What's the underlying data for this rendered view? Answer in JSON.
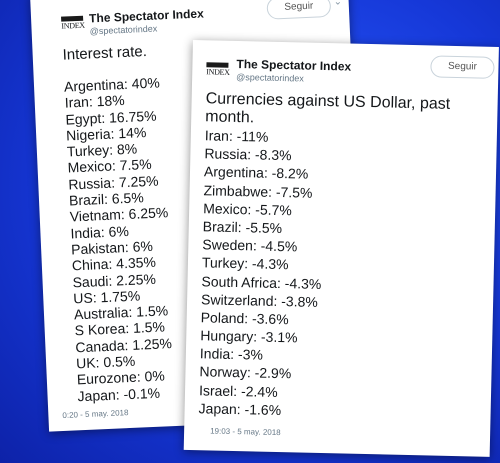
{
  "tweet_a": {
    "account_name": "The Spectator Index",
    "handle": "@spectatorindex",
    "logo_text": "INDEX",
    "follow_label": "Seguir",
    "chevron_icon": "chevron-down-icon",
    "title": "Interest rate.",
    "rows": [
      "Argentina: 40%",
      "Iran: 18%",
      "Egypt: 16.75%",
      "Nigeria: 14%",
      "Turkey: 8%",
      "Mexico: 7.5%",
      "Russia: 7.25%",
      "Brazil: 6.5%",
      "Vietnam: 6.25%",
      "India: 6%",
      "Pakistan: 6%",
      "China: 4.35%",
      "Saudi: 2.25%",
      "US: 1.75%",
      "Australia: 1.5%",
      "S Korea: 1.5%",
      "Canada: 1.25%",
      "UK: 0.5%",
      "Eurozone: 0%",
      "Japan: -0.1%"
    ],
    "timestamp": "0:20 - 5 may. 2018"
  },
  "tweet_b": {
    "account_name": "The Spectator Index",
    "handle": "@spectatorindex",
    "logo_text": "INDEX",
    "follow_label": "Seguir",
    "title": "Currencies against US Dollar, past month.",
    "rows": [
      "Iran: -11%",
      "Russia: -8.3%",
      "Argentina: -8.2%",
      "Zimbabwe: -7.5%",
      "Mexico: -5.7%",
      "Brazil: -5.5%",
      "Sweden: -4.5%",
      "Turkey: -4.3%",
      "South Africa: -4.3%",
      "Switzerland: -3.8%",
      "Poland: -3.6%",
      "Hungary: -3.1%",
      "India: -3%",
      "Norway: -2.9%",
      "Israel: -2.4%",
      "Japan: -1.6%"
    ],
    "timestamp": "19:03 - 5 may. 2018"
  }
}
